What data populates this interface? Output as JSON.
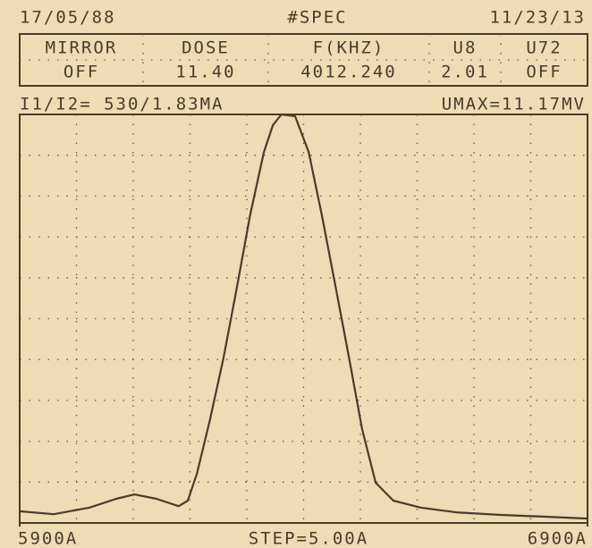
{
  "chart_data": {
    "type": "line",
    "header_left": "17/05/88",
    "title": "#SPEC",
    "header_right": "11/23/13",
    "table": {
      "columns": [
        "MIRROR",
        "DOSE",
        "F(KHZ)",
        "U8",
        "U72"
      ],
      "values": [
        "OFF",
        "11.40",
        "4012.240",
        "2.01",
        "OFF"
      ]
    },
    "subtitle_left": "I1/I2= 530/1.83MA",
    "subtitle_right": "UMAX=11.17MV",
    "annotation": "STEP=5.00A",
    "x": [
      5900,
      5960,
      6023,
      6070,
      6102,
      6141,
      6180,
      6196,
      6212,
      6235,
      6259,
      6283,
      6306,
      6330,
      6346,
      6361,
      6385,
      6409,
      6432,
      6456,
      6480,
      6503,
      6527,
      6558,
      6606,
      6669,
      6747,
      6826,
      6900
    ],
    "series": [
      {
        "color": "#4a3b2c",
        "values": [
          0.32,
          0.24,
          0.42,
          0.66,
          0.78,
          0.66,
          0.46,
          0.61,
          1.34,
          2.81,
          4.52,
          6.48,
          8.43,
          10.14,
          10.88,
          11.17,
          11.12,
          10.14,
          8.43,
          6.48,
          4.52,
          2.57,
          1.1,
          0.61,
          0.42,
          0.29,
          0.22,
          0.17,
          0.12
        ]
      }
    ],
    "xlim": [
      5900,
      6900
    ],
    "xticks": [
      {
        "value": 5900,
        "label": "5900A"
      },
      {
        "value": 6900,
        "label": "6900A"
      }
    ],
    "ylim": [
      0,
      11.17
    ]
  }
}
